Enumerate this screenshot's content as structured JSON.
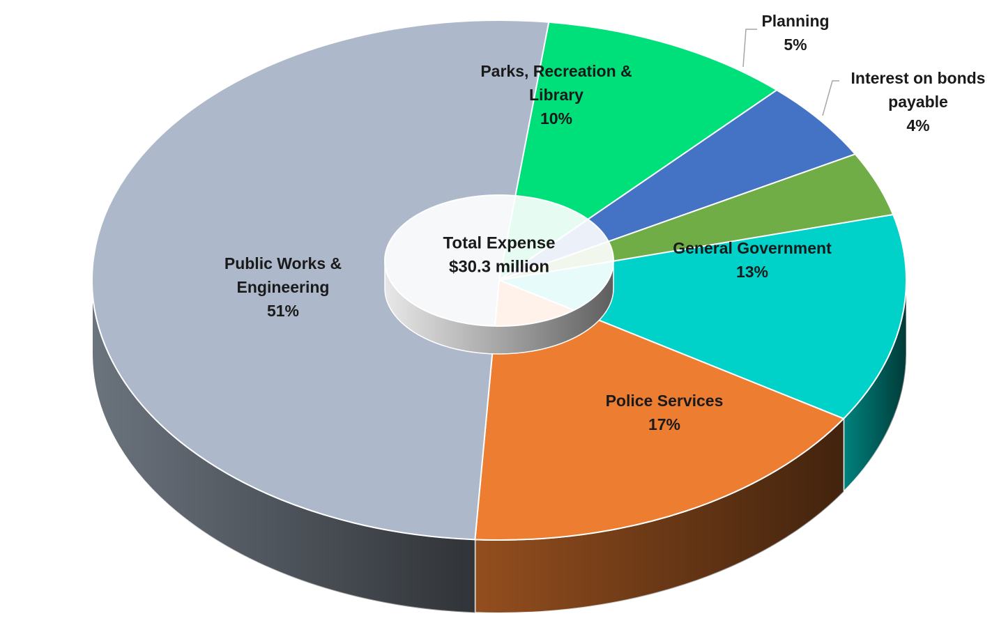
{
  "chart_data": {
    "type": "pie",
    "variant": "3d-donut",
    "center_label": [
      "Total Expense",
      "$30.3 million"
    ],
    "slices": [
      {
        "name": "Parks, Recreation & Library",
        "label_lines": [
          "Parks, Recreation &",
          "Library"
        ],
        "pct_label": "10%",
        "value": 10,
        "color": "#00E07A"
      },
      {
        "name": "Planning",
        "label_lines": [
          "Planning"
        ],
        "pct_label": "5%",
        "value": 5,
        "color": "#4472C4"
      },
      {
        "name": "Interest on bonds payable",
        "label_lines": [
          "Interest on bonds",
          "payable"
        ],
        "pct_label": "4%",
        "value": 4,
        "color": "#70AD47"
      },
      {
        "name": "General Government",
        "label_lines": [
          "General Government"
        ],
        "pct_label": "13%",
        "value": 13,
        "color": "#00D1C9"
      },
      {
        "name": "Police Services",
        "label_lines": [
          "Police Services"
        ],
        "pct_label": "17%",
        "value": 17,
        "color": "#ED7D31"
      },
      {
        "name": "Public Works & Engineering",
        "label_lines": [
          "Public Works &",
          "Engineering"
        ],
        "pct_label": "51%",
        "value": 51,
        "color": "#ADB9CA"
      }
    ]
  }
}
